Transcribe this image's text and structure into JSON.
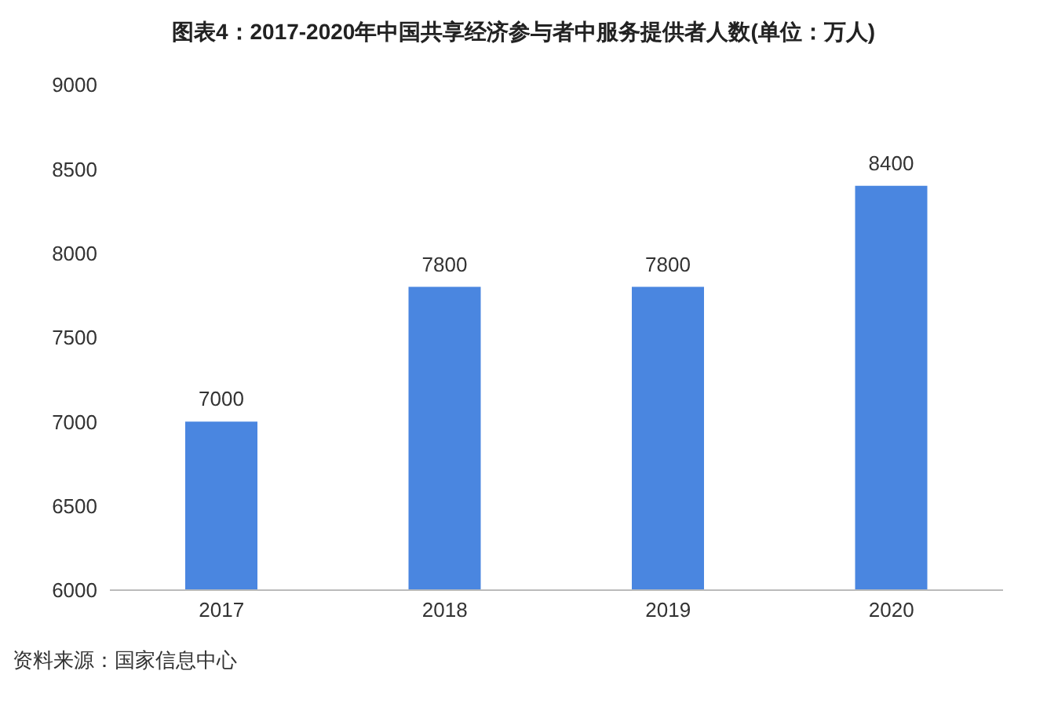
{
  "chart_data": {
    "type": "bar",
    "title": "图表4：2017-2020年中国共享经济参与者中服务提供者人数(单位：万人)",
    "categories": [
      "2017",
      "2018",
      "2019",
      "2020"
    ],
    "values": [
      7000,
      7800,
      7800,
      8400
    ],
    "color": "#4a86e0",
    "ylim": [
      6000,
      9000
    ],
    "yticks": [
      6000,
      6500,
      7000,
      7500,
      8000,
      8500,
      9000
    ],
    "grid": false,
    "data_labels": true,
    "annotations": [
      "资料来源：国家信息中心"
    ]
  }
}
